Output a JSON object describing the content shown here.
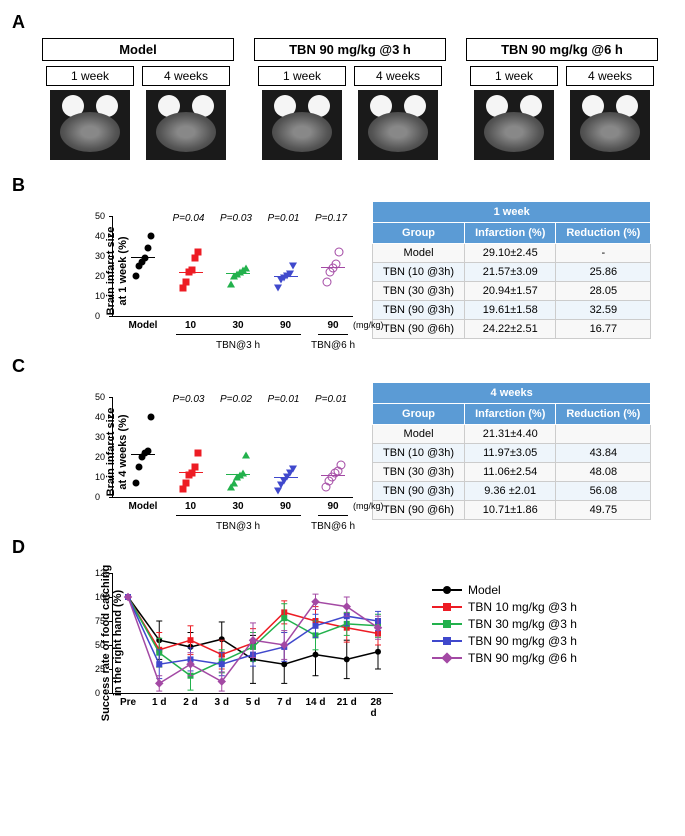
{
  "panelA": {
    "label": "A",
    "groups": [
      {
        "title": "Model",
        "times": [
          "1 week",
          "4 weeks"
        ]
      },
      {
        "title": "TBN 90 mg/kg @3 h",
        "times": [
          "1 week",
          "4 weeks"
        ]
      },
      {
        "title": "TBN 90 mg/kg @6 h",
        "times": [
          "1 week",
          "4 weeks"
        ]
      }
    ]
  },
  "panelB": {
    "label": "B",
    "chart": {
      "ylabel": "Brain infarct size\nat 1 week (%)",
      "ylim": [
        0,
        50
      ],
      "yticks": [
        0,
        10,
        20,
        30,
        40,
        50
      ],
      "groups": [
        "Model",
        "10",
        "30",
        "90",
        "90"
      ],
      "sub_labels": {
        "tbn3h": "TBN@3 h",
        "tbn6h": "TBN@6 h"
      },
      "mg_label": "(mg/kg)",
      "pvalues": [
        "",
        "P=0.04",
        "P=0.03",
        "P=0.01",
        "P=0.17"
      ],
      "colors": [
        "#000000",
        "#ed1c24",
        "#22b14c",
        "#3f48cc",
        "#a349a4"
      ],
      "markers": [
        "circle-filled",
        "square-filled",
        "triangle-filled",
        "triangle-down-filled",
        "circle-open"
      ],
      "medians": [
        29,
        21.5,
        21,
        19.5,
        24
      ],
      "data": [
        [
          20,
          25,
          27,
          29,
          34,
          40
        ],
        [
          14,
          17,
          22,
          23,
          29,
          32
        ],
        [
          16,
          20,
          21,
          22,
          23,
          24
        ],
        [
          14,
          18,
          19,
          20,
          21,
          25
        ],
        [
          17,
          22,
          24,
          26,
          32
        ]
      ]
    },
    "table": {
      "title": "1 week",
      "headers": [
        "Group",
        "Infarction (%)",
        "Reduction (%)"
      ],
      "rows": [
        [
          "Model",
          "29.10±2.45",
          "-"
        ],
        [
          "TBN (10 @3h)",
          "21.57±3.09",
          "25.86"
        ],
        [
          "TBN (30 @3h)",
          "20.94±1.57",
          "28.05"
        ],
        [
          "TBN (90 @3h)",
          "19.61±1.58",
          "32.59"
        ],
        [
          "TBN (90 @6h)",
          "24.22±2.51",
          "16.77"
        ]
      ]
    }
  },
  "panelC": {
    "label": "C",
    "chart": {
      "ylabel": "Brain infarct size\nat 4 weeks (%)",
      "ylim": [
        0,
        50
      ],
      "yticks": [
        0,
        10,
        20,
        30,
        40,
        50
      ],
      "groups": [
        "Model",
        "10",
        "30",
        "90",
        "90"
      ],
      "sub_labels": {
        "tbn3h": "TBN@3 h",
        "tbn6h": "TBN@6 h"
      },
      "mg_label": "(mg/kg)",
      "pvalues": [
        "",
        "P=0.03",
        "P=0.02",
        "P=0.01",
        "P=0.01"
      ],
      "colors": [
        "#000000",
        "#ed1c24",
        "#22b14c",
        "#3f48cc",
        "#a349a4"
      ],
      "markers": [
        "circle-filled",
        "square-filled",
        "triangle-filled",
        "triangle-down-filled",
        "circle-open"
      ],
      "medians": [
        21,
        12,
        11,
        9.5,
        10.5
      ],
      "data": [
        [
          7,
          15,
          20,
          22,
          23,
          40
        ],
        [
          4,
          7,
          11,
          12,
          15,
          22
        ],
        [
          5,
          7,
          10,
          11,
          12,
          21
        ],
        [
          3,
          6,
          8,
          10,
          12,
          14
        ],
        [
          5,
          8,
          10,
          12,
          13,
          16
        ]
      ]
    },
    "table": {
      "title": "4 weeks",
      "headers": [
        "Group",
        "Infarction (%)",
        "Reduction (%)"
      ],
      "rows": [
        [
          "Model",
          "21.31±4.40",
          ""
        ],
        [
          "TBN (10 @3h)",
          "11.97±3.05",
          "43.84"
        ],
        [
          "TBN (30 @3h)",
          "11.06±2.54",
          "48.08"
        ],
        [
          "TBN (90 @3h)",
          "9.36 ±2.01",
          "56.08"
        ],
        [
          "TBN (90 @6h)",
          "10.71±1.86",
          "49.75"
        ]
      ]
    }
  },
  "panelD": {
    "label": "D",
    "chart": {
      "ylabel": "Success rate of food catching\nin the right hand (%)",
      "ylim": [
        0,
        125
      ],
      "yticks": [
        0,
        25,
        50,
        75,
        100,
        125
      ],
      "xlabels": [
        "Pre",
        "1 d",
        "2 d",
        "3 d",
        "5 d",
        "7 d",
        "14 d",
        "21 d",
        "28 d"
      ],
      "series": [
        {
          "label": "Model",
          "color": "#000000",
          "marker": "circle",
          "data": [
            100,
            55,
            48,
            56,
            35,
            30,
            40,
            35,
            43
          ]
        },
        {
          "label": "TBN 10 mg/kg @3 h",
          "color": "#ed1c24",
          "marker": "square",
          "data": [
            100,
            45,
            55,
            40,
            52,
            84,
            75,
            68,
            62
          ]
        },
        {
          "label": "TBN 30 mg/kg @3 h",
          "color": "#22b14c",
          "marker": "triangle",
          "data": [
            100,
            42,
            18,
            33,
            48,
            78,
            60,
            72,
            70
          ]
        },
        {
          "label": "TBN 90 mg/kg @3 h",
          "color": "#3f48cc",
          "marker": "triangle-down",
          "data": [
            100,
            30,
            35,
            30,
            40,
            48,
            70,
            80,
            75
          ]
        },
        {
          "label": "TBN 90 mg/kg @6 h",
          "color": "#a349a4",
          "marker": "diamond",
          "data": [
            100,
            10,
            30,
            12,
            55,
            50,
            95,
            90,
            68
          ]
        }
      ],
      "error_bars": [
        [
          0,
          20,
          15,
          18,
          25,
          20,
          22,
          20,
          18
        ],
        [
          0,
          18,
          15,
          15,
          15,
          12,
          15,
          15,
          12
        ],
        [
          0,
          15,
          15,
          12,
          15,
          15,
          15,
          12,
          12
        ],
        [
          0,
          15,
          12,
          12,
          12,
          15,
          12,
          10,
          10
        ],
        [
          0,
          8,
          12,
          10,
          18,
          15,
          8,
          10,
          12
        ]
      ]
    }
  }
}
